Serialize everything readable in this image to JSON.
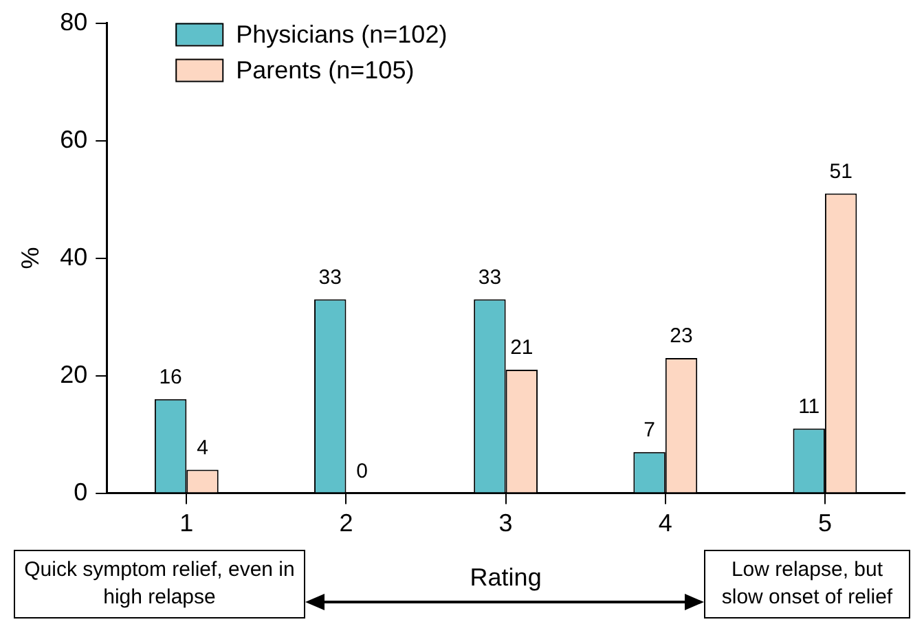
{
  "chart_data": {
    "type": "bar",
    "ylabel": "%",
    "xlabel": "Rating",
    "categories": [
      "1",
      "2",
      "3",
      "4",
      "5"
    ],
    "series": [
      {
        "name": "Physicians (n=102)",
        "color": "#5fc0ca",
        "values": [
          16,
          33,
          33,
          7,
          11
        ]
      },
      {
        "name": "Parents (n=105)",
        "color": "#fdd7c2",
        "values": [
          4,
          0,
          21,
          23,
          51
        ]
      }
    ],
    "ylim": [
      0,
      80
    ],
    "yticks": [
      0,
      20,
      40,
      60,
      80
    ],
    "data_labels": true,
    "legend": "top left",
    "annotations": [
      "Quick symptom relief, even in high relapse",
      "Low relapse, but slow onset of relief"
    ]
  }
}
